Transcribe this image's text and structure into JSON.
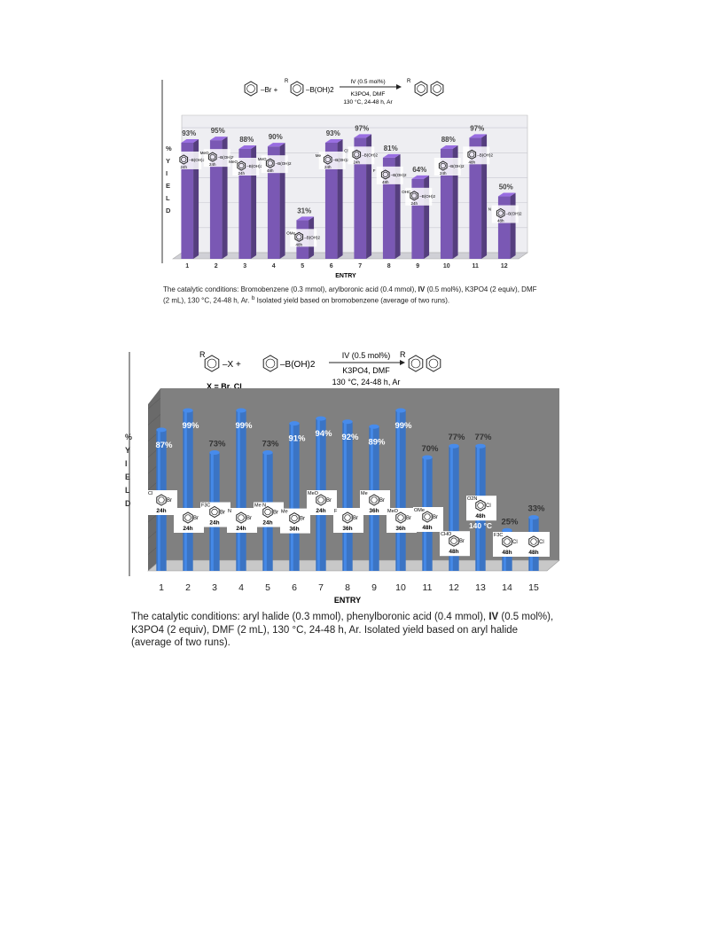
{
  "chart_data": [
    {
      "type": "bar",
      "reaction": {
        "reactant_a": "Br",
        "reactant_b_label": "R",
        "boronic": "B(OH)2",
        "catalyst": "IV (0.5 mol%)",
        "base_solvent": "K3PO4, DMF",
        "conditions": "130 °C, 24-48 h, Ar",
        "product_label": "R"
      },
      "xlabel": "ENTRY",
      "ylabel": "% YIELD",
      "ylabel_letters": [
        "%",
        "Y",
        "I",
        "E",
        "L",
        "D"
      ],
      "categories": [
        "1",
        "2",
        "3",
        "4",
        "5",
        "6",
        "7",
        "8",
        "9",
        "10",
        "11",
        "12"
      ],
      "values": [
        93,
        95,
        88,
        90,
        31,
        93,
        97,
        81,
        64,
        88,
        97,
        50
      ],
      "value_labels": [
        "93%",
        "95%",
        "88%",
        "90%",
        "31%",
        "93%",
        "97%",
        "81%",
        "64%",
        "88%",
        "97%",
        "50%"
      ],
      "times": [
        "24h",
        "24h",
        "24h",
        "48h",
        "48h",
        "24h",
        "24h",
        "48h",
        "24h",
        "24h",
        "48h",
        "48h"
      ],
      "substituents": [
        "",
        "MeO",
        "MeO",
        "MeO",
        "OMe",
        "Me",
        "Cl",
        "F",
        "OHC",
        "",
        "",
        "N"
      ],
      "ylim": [
        0,
        110
      ],
      "bar_color": "#7a58b4",
      "caption_prefix": "The catalytic conditions: Bromobenzene (0.3 mmol), arylboronic acid (0.4 mmol), ",
      "caption_bold": "IV",
      "caption_suffix": " (0.5 mol%), K3PO4 (2 equiv), DMF (2 mL), 130 °C, 24-48 h, Ar. ",
      "caption_note_mark": "b",
      "caption_note": " Isolated yield based on bromobenzene (average of two runs)."
    },
    {
      "type": "bar",
      "reaction": {
        "reactant_label": "R",
        "reactant_x": "X",
        "boronic": "B(OH)2",
        "catalyst": "IV (0.5 mol%)",
        "base_solvent": "K3PO4, DMF",
        "conditions": "130 °C, 24-48 h, Ar",
        "halide_note": "X = Br, Cl",
        "product_label": "R"
      },
      "xlabel": "ENTRY",
      "ylabel": "% YIELD",
      "ylabel_letters": [
        "%",
        "Y",
        "I",
        "E",
        "L",
        "D"
      ],
      "categories": [
        "1",
        "2",
        "3",
        "4",
        "5",
        "6",
        "7",
        "8",
        "9",
        "10",
        "11",
        "12",
        "13",
        "14",
        "15"
      ],
      "values": [
        87,
        99,
        73,
        99,
        73,
        91,
        94,
        92,
        89,
        99,
        70,
        77,
        77,
        25,
        33
      ],
      "value_labels": [
        "87%",
        "99%",
        "73%",
        "99%",
        "73%",
        "91%",
        "94%",
        "92%",
        "89%",
        "99%",
        "70%",
        "77%",
        "77%",
        "25%",
        "33%"
      ],
      "substrates": [
        {
          "sub": "Cl",
          "hal": "Br",
          "time": "24h"
        },
        {
          "sub": "",
          "hal": "Br",
          "time": "24h"
        },
        {
          "sub": "F3C",
          "hal": "Br",
          "time": "24h"
        },
        {
          "sub": "N",
          "hal": "Br",
          "time": "24h"
        },
        {
          "sub": "Me N",
          "hal": "Br",
          "time": "24h"
        },
        {
          "sub": "Me",
          "hal": "Br",
          "time": "36h"
        },
        {
          "sub": "MeO",
          "hal": "Br",
          "time": "24h"
        },
        {
          "sub": "F",
          "hal": "Br",
          "time": "36h"
        },
        {
          "sub": "Me",
          "hal": "Br",
          "time": "36h"
        },
        {
          "sub": "MeO",
          "hal": "Br",
          "time": "36h"
        },
        {
          "sub": "OMe",
          "hal": "Br",
          "time": "48h"
        },
        {
          "sub": "CHO",
          "hal": "Br",
          "time": "48h"
        },
        {
          "sub": "O2N",
          "hal": "Cl",
          "time": "48h"
        },
        {
          "sub": "F3C",
          "hal": "Cl",
          "time": "48h"
        },
        {
          "sub": "",
          "hal": "Cl",
          "time": "48h"
        }
      ],
      "special_note": "140 °C",
      "special_note_entry": "13",
      "ylim": [
        0,
        105
      ],
      "bar_color": "#3b74c4",
      "caption_prefix": "The catalytic conditions: aryl halide (0.3 mmol), phenylboronic acid (0.4 mmol), ",
      "caption_bold": "IV",
      "caption_suffix": " (0.5 mol%), K3PO4 (2 equiv), DMF (2 mL), 130 °C, 24-48 h, Ar. Isolated yield based on aryl halide (average of two runs)."
    }
  ]
}
